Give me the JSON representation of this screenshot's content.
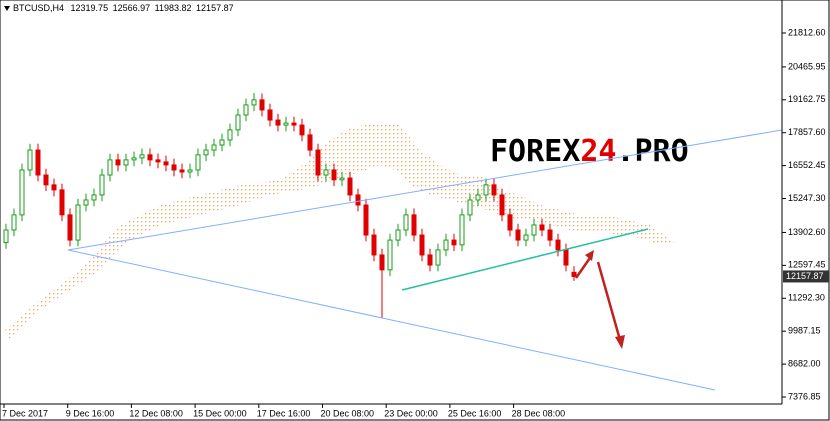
{
  "chart_data": {
    "type": "candlestick",
    "title": "BTCUSD,H4",
    "watermark": [
      "FOREX",
      "24",
      ".PRO"
    ],
    "xtick_labels": [
      "7 Dec 2017",
      "9 Dec 16:00",
      "12 Dec 08:00",
      "15 Dec 00:00",
      "17 Dec 16:00",
      "20 Dec 08:00",
      "23 Dec 00:00",
      "25 Dec 16:00",
      "28 Dec 08:00"
    ],
    "up_color": "#1a9e1a",
    "down_color": "#e00000",
    "ylim": [
      7100,
      23120
    ],
    "yticks": [
      {
        "value": 21812.6,
        "label": "21812.60"
      },
      20465.95,
      19162.75,
      {
        "value": 17857.6,
        "label": "17857.60"
      },
      16552.45,
      {
        "value": 15247.3,
        "label": "15247.30"
      },
      {
        "value": 13902.6,
        "label": "13902.60"
      },
      12597.45,
      {
        "value": 11292.3,
        "label": "11292.30"
      },
      9987.15,
      {
        "value": 8682,
        "label": "8682.00"
      },
      7376.85
    ],
    "open": [
      13500,
      14000,
      14600,
      16380,
      17170,
      16180,
      15790,
      15590,
      14600,
      13600,
      14990,
      15190,
      15390,
      16180,
      16780,
      16580,
      16780,
      16860,
      16980,
      16780,
      16700,
      16580,
      16380,
      16300,
      16380,
      16980,
      17170,
      17370,
      17570,
      17970,
      18560,
      18960,
      19160,
      18760,
      18360,
      18160,
      18240,
      18160,
      17770,
      17170,
      16180,
      16380,
      15990,
      16060,
      15390,
      14990,
      13800,
      13010,
      12420,
      13600,
      14000,
      14600,
      13800,
      13010,
      12610,
      13210,
      13600,
      13410,
      14600,
      15190,
      15390,
      15790,
      15390,
      14600,
      14000,
      13600,
      13800,
      14200,
      14000,
      13600,
      13210,
      12319.75
    ],
    "high": [
      14250,
      14850,
      16630,
      17420,
      17420,
      16430,
      16040,
      15840,
      14850,
      15240,
      15440,
      15640,
      16430,
      17030,
      17030,
      17030,
      17110,
      17230,
      17230,
      17030,
      16950,
      16830,
      16630,
      16630,
      17230,
      17420,
      17620,
      17820,
      18220,
      18810,
      19210,
      19430,
      19410,
      19010,
      18610,
      18490,
      18490,
      18410,
      18020,
      17420,
      16630,
      16630,
      16310,
      16310,
      15640,
      15240,
      14050,
      13260,
      13850,
      14250,
      14850,
      14850,
      14050,
      13260,
      13460,
      13850,
      13850,
      14850,
      15440,
      15640,
      16040,
      16040,
      15640,
      14850,
      14250,
      14050,
      14450,
      14450,
      14250,
      13850,
      13460,
      12566.97
    ],
    "low": [
      13250,
      13750,
      14350,
      16130,
      15930,
      15540,
      15340,
      14350,
      13350,
      13350,
      14740,
      14940,
      15140,
      15930,
      16330,
      16330,
      16530,
      16610,
      16530,
      16450,
      16330,
      16130,
      16050,
      16050,
      16130,
      16730,
      16920,
      17120,
      17320,
      17720,
      18310,
      18710,
      18510,
      18110,
      17910,
      17910,
      17910,
      17520,
      16920,
      15930,
      15930,
      15740,
      15740,
      15140,
      14740,
      13550,
      12760,
      10510,
      12170,
      13350,
      13750,
      13550,
      12760,
      12360,
      12360,
      12960,
      13160,
      13160,
      14350,
      14940,
      15140,
      15140,
      14350,
      13750,
      13350,
      13350,
      13550,
      13750,
      13350,
      12960,
      12360,
      11983.82
    ],
    "close": [
      14000,
      14600,
      16380,
      17170,
      16180,
      15790,
      15590,
      14600,
      13600,
      14990,
      15190,
      15390,
      16180,
      16780,
      16580,
      16780,
      16860,
      16980,
      16780,
      16700,
      16580,
      16380,
      16300,
      16380,
      16980,
      17170,
      17370,
      17570,
      17970,
      18560,
      18960,
      19160,
      18760,
      18360,
      18160,
      18240,
      18160,
      17770,
      17170,
      16180,
      16380,
      15990,
      16060,
      15390,
      14990,
      13800,
      13010,
      12420,
      13600,
      14000,
      14600,
      13800,
      13010,
      12610,
      13210,
      13600,
      13410,
      14600,
      15190,
      15390,
      15790,
      15390,
      14600,
      14000,
      13600,
      13800,
      14200,
      14000,
      13600,
      13210,
      12610,
      12157.87
    ]
  }
}
